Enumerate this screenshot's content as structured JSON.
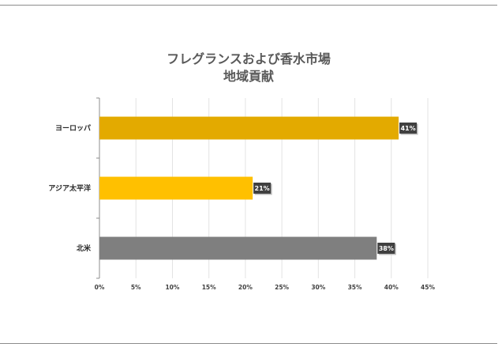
{
  "chart_data": {
    "type": "bar",
    "orientation": "horizontal",
    "title": [
      "フレグランスおよび香水市場",
      "地域貢献"
    ],
    "categories": [
      "ヨーロッパ",
      "アジア太平洋",
      "北米"
    ],
    "values": [
      41,
      21,
      38
    ],
    "data_labels": [
      "41%",
      "21%",
      "38%"
    ],
    "bar_colors": [
      "#E3AA00",
      "#FFC000",
      "#7F7F7F"
    ],
    "xlim": [
      0,
      45
    ],
    "xticks": [
      0,
      5,
      10,
      15,
      20,
      25,
      30,
      35,
      40,
      45
    ],
    "xtick_labels": [
      "0%",
      "5%",
      "10%",
      "15%",
      "20%",
      "25%",
      "30%",
      "35%",
      "40%",
      "45%"
    ],
    "grid": true,
    "legend": "none"
  }
}
